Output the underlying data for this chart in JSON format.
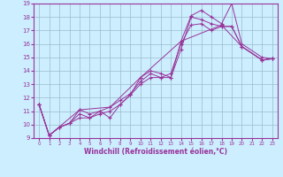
{
  "xlabel": "Windchill (Refroidissement éolien,°C)",
  "bg_color": "#cceeff",
  "grid_color": "#99bbcc",
  "line_color": "#993399",
  "xlim": [
    -0.5,
    23.5
  ],
  "ylim": [
    9,
    19
  ],
  "xticks": [
    0,
    1,
    2,
    3,
    4,
    5,
    6,
    7,
    8,
    9,
    10,
    11,
    12,
    13,
    14,
    15,
    16,
    17,
    18,
    19,
    20,
    21,
    22,
    23
  ],
  "yticks": [
    9,
    10,
    11,
    12,
    13,
    14,
    15,
    16,
    17,
    18,
    19
  ],
  "lines": [
    {
      "x": [
        0,
        1,
        2,
        3,
        4,
        5,
        6,
        7,
        8,
        9,
        10,
        11,
        12,
        13,
        14,
        15,
        16,
        17,
        18,
        19,
        20,
        22,
        23
      ],
      "y": [
        11.5,
        9.2,
        9.8,
        10.1,
        11.1,
        10.8,
        11.0,
        10.5,
        11.5,
        12.2,
        13.5,
        14.0,
        13.8,
        13.5,
        16.2,
        18.1,
        18.5,
        18.0,
        17.5,
        19.0,
        16.0,
        15.0,
        14.9
      ]
    },
    {
      "x": [
        0,
        1,
        2,
        3,
        4,
        5,
        6,
        7,
        8,
        9,
        10,
        11,
        12,
        13,
        14,
        15,
        16,
        17,
        18,
        19,
        20,
        22,
        23
      ],
      "y": [
        11.5,
        9.2,
        9.8,
        10.1,
        10.5,
        10.5,
        10.8,
        11.0,
        11.5,
        12.2,
        13.0,
        13.5,
        13.5,
        13.5,
        15.6,
        18.0,
        17.8,
        17.5,
        17.3,
        17.3,
        15.8,
        14.8,
        14.9
      ]
    },
    {
      "x": [
        0,
        1,
        2,
        3,
        4,
        5,
        6,
        7,
        8,
        9,
        10,
        11,
        12,
        13,
        14,
        15,
        16,
        17,
        18,
        19,
        20,
        22,
        23
      ],
      "y": [
        11.5,
        9.2,
        9.8,
        10.1,
        10.8,
        10.5,
        11.0,
        11.3,
        11.8,
        12.3,
        13.2,
        13.8,
        13.5,
        13.8,
        16.0,
        17.4,
        17.5,
        17.0,
        17.3,
        17.3,
        15.8,
        14.8,
        14.9
      ]
    },
    {
      "x": [
        0,
        1,
        4,
        7,
        10,
        14,
        18,
        20,
        22,
        23
      ],
      "y": [
        11.5,
        9.2,
        11.1,
        11.3,
        13.5,
        16.2,
        17.4,
        15.8,
        14.8,
        14.9
      ]
    }
  ]
}
